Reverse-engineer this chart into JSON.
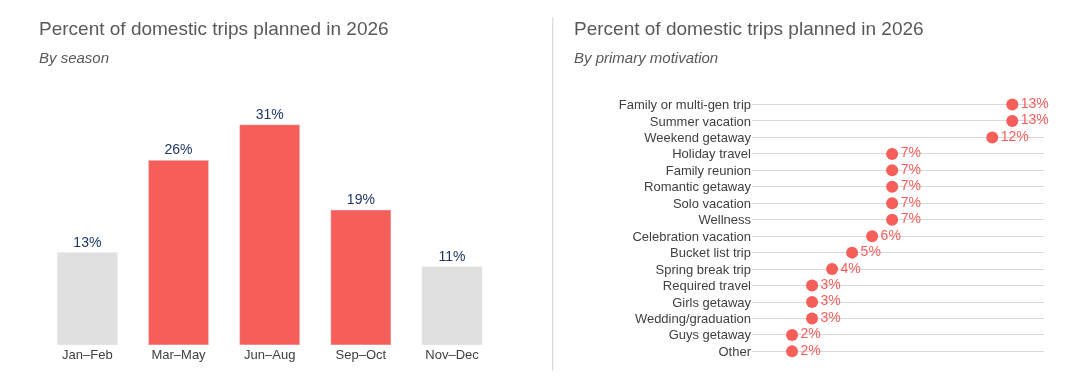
{
  "chart_data": [
    {
      "type": "bar",
      "title": "Percent of domestic trips planned in 2026",
      "subtitle": "By season",
      "categories": [
        "Jan–Feb",
        "Mar–May",
        "Jun–Aug",
        "Sep–Oct",
        "Nov–Dec"
      ],
      "values": [
        13,
        26,
        31,
        19,
        11
      ],
      "colors": [
        "#e0e0e0",
        "#f65e5a",
        "#f65e5a",
        "#f65e5a",
        "#e0e0e0"
      ],
      "value_labels": [
        "13%",
        "26%",
        "31%",
        "19%",
        "11%"
      ]
    },
    {
      "type": "lollipop",
      "title": "Percent of domestic trips planned in 2026",
      "subtitle": "By primary motivation",
      "orientation": "horizontal",
      "categories": [
        "Family or multi-gen trip",
        "Summer vacation",
        "Weekend getaway",
        "Holiday travel",
        "Family reunion",
        "Romantic getaway",
        "Solo vacation",
        "Wellness",
        "Celebration vacation",
        "Bucket list trip",
        "Spring break trip",
        "Required travel",
        "Girls getaway",
        "Wedding/graduation",
        "Guys getaway",
        "Other"
      ],
      "values": [
        13,
        13,
        12,
        7,
        7,
        7,
        7,
        7,
        6,
        5,
        4,
        3,
        3,
        3,
        2,
        2
      ],
      "color": "#f65e5a",
      "marker": "circle",
      "grid": "y",
      "value_labels": [
        "13%",
        "13%",
        "12%",
        "7%",
        "7%",
        "7%",
        "7%",
        "7%",
        "6%",
        "5%",
        "4%",
        "3%",
        "3%",
        "3%",
        "2%",
        "2%"
      ]
    }
  ]
}
